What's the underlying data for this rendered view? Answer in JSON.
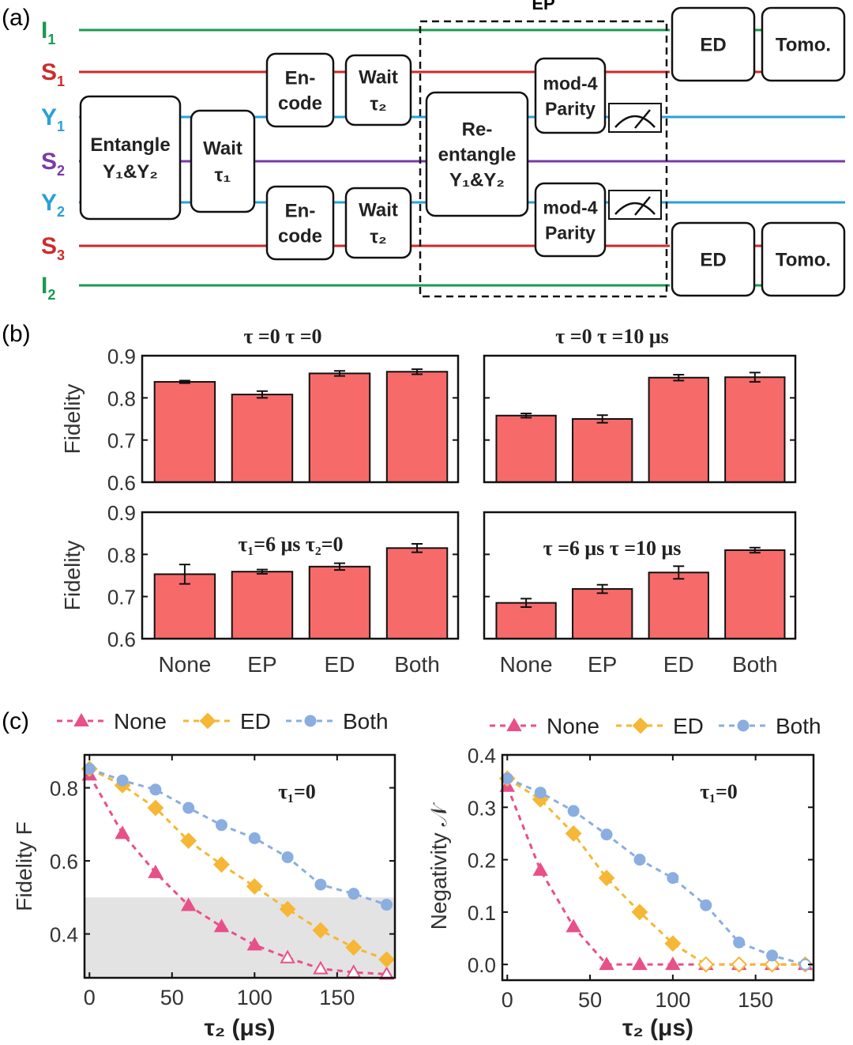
{
  "panel_labels": {
    "a": "(a)",
    "b": "(b)",
    "c": "(c)"
  },
  "circuit": {
    "lines": [
      {
        "name": "I",
        "sub": "1",
        "color": "#1a9b50"
      },
      {
        "name": "S",
        "sub": "1",
        "color": "#d02a2a"
      },
      {
        "name": "Y",
        "sub": "1",
        "color": "#2aa0d8"
      },
      {
        "name": "S",
        "sub": "2",
        "color": "#7a3aa8"
      },
      {
        "name": "Y",
        "sub": "2",
        "color": "#2aa0d8"
      },
      {
        "name": "S",
        "sub": "3",
        "color": "#d02a2a"
      },
      {
        "name": "I",
        "sub": "2",
        "color": "#1a9b50"
      }
    ],
    "ep_label": "EP",
    "boxes": {
      "entangle": [
        "Entangle",
        "Y₁&Y₂"
      ],
      "wait1": [
        "Wait",
        "τ₁"
      ],
      "encode_top": [
        "En-",
        "code"
      ],
      "encode_bot": [
        "En-",
        "code"
      ],
      "wait2_top": [
        "Wait",
        "τ₂"
      ],
      "wait2_bot": [
        "Wait",
        "τ₂"
      ],
      "reentangle": [
        "Re-",
        "entangle",
        "Y₁&Y₂"
      ],
      "parity_top": [
        "mod-4",
        "Parity"
      ],
      "parity_bot": [
        "mod-4",
        "Parity"
      ],
      "ed_top": "ED",
      "tomo_top": "Tomo.",
      "ed_bot": "ED",
      "tomo_bot": "Tomo."
    }
  },
  "colors": {
    "bar": "#f76a6a",
    "none": "#e8508a",
    "ed": "#f5b735",
    "both": "#8aaee0",
    "shade": "#e3e3e3"
  },
  "chart_data": [
    {
      "type": "bar",
      "annotation": "τ =0    τ =0",
      "categories": [
        "None",
        "EP",
        "ED",
        "Both"
      ],
      "values": [
        0.838,
        0.808,
        0.858,
        0.862
      ],
      "errors": [
        0.003,
        0.008,
        0.006,
        0.006
      ],
      "ylabel": "Fidelity",
      "ylim": [
        0.6,
        0.9
      ],
      "yticks": [
        "0.6",
        "0.7",
        "0.8",
        "0.9"
      ]
    },
    {
      "type": "bar",
      "annotation": "τ =0    τ =10 μs",
      "categories": [
        "None",
        "EP",
        "ED",
        "Both"
      ],
      "values": [
        0.758,
        0.75,
        0.848,
        0.849
      ],
      "errors": [
        0.005,
        0.009,
        0.007,
        0.011
      ],
      "ylabel": "",
      "ylim": [
        0.6,
        0.9
      ],
      "yticks": []
    },
    {
      "type": "bar",
      "annotation": "τ₁=6 μs   τ₂=0",
      "categories": [
        "None",
        "EP",
        "ED",
        "Both"
      ],
      "values": [
        0.753,
        0.759,
        0.771,
        0.815
      ],
      "errors": [
        0.023,
        0.005,
        0.008,
        0.01
      ],
      "ylabel": "Fidelity",
      "ylim": [
        0.6,
        0.9
      ],
      "yticks": [
        "0.6",
        "0.7",
        "0.8",
        "0.9"
      ],
      "xticklabels": [
        "None",
        "EP",
        "ED",
        "Both"
      ]
    },
    {
      "type": "bar",
      "annotation": "τ =6 μs   τ =10 μs",
      "categories": [
        "None",
        "EP",
        "ED",
        "Both"
      ],
      "values": [
        0.685,
        0.718,
        0.757,
        0.81
      ],
      "errors": [
        0.01,
        0.01,
        0.015,
        0.006
      ],
      "ylabel": "",
      "ylim": [
        0.6,
        0.9
      ],
      "yticks": [],
      "xticklabels": [
        "None",
        "EP",
        "ED",
        "Both"
      ]
    },
    {
      "type": "line",
      "annotation": "τ₁=0",
      "x": [
        0,
        20,
        40,
        60,
        80,
        100,
        120,
        140,
        160,
        180
      ],
      "series": [
        {
          "name": "None",
          "values": [
            0.835,
            0.675,
            0.568,
            0.478,
            0.42,
            0.37,
            0.335,
            0.305,
            0.295,
            0.29
          ],
          "open_from": 120
        },
        {
          "name": "ED",
          "values": [
            0.852,
            0.807,
            0.745,
            0.655,
            0.59,
            0.53,
            0.468,
            0.41,
            0.363,
            0.33
          ]
        },
        {
          "name": "Both",
          "values": [
            0.852,
            0.82,
            0.795,
            0.745,
            0.698,
            0.662,
            0.61,
            0.535,
            0.51,
            0.48
          ]
        }
      ],
      "xlabel": "τ₂ (μs)",
      "ylabel": "Fidelity F",
      "xlim": [
        -3,
        185
      ],
      "ylim": [
        0.28,
        0.89
      ],
      "xticks": [
        0,
        50,
        100,
        150
      ],
      "yticks": [
        0.4,
        0.6,
        0.8
      ],
      "shade_below": 0.5
    },
    {
      "type": "line",
      "annotation": "τ₁=0",
      "x": [
        0,
        20,
        40,
        60,
        80,
        100,
        120,
        140,
        160,
        180
      ],
      "series": [
        {
          "name": "None",
          "values": [
            0.34,
            0.18,
            0.072,
            0.0,
            0.0,
            0.0,
            0.0,
            0.0,
            0.0,
            0.0
          ],
          "open_from": 120
        },
        {
          "name": "ED",
          "values": [
            0.355,
            0.315,
            0.25,
            0.165,
            0.1,
            0.04,
            0.0,
            0.0,
            0.0,
            0.0
          ],
          "open_from": 120
        },
        {
          "name": "Both",
          "values": [
            0.355,
            0.328,
            0.293,
            0.248,
            0.2,
            0.165,
            0.113,
            0.042,
            0.017,
            0.0
          ],
          "open_from": 180
        }
      ],
      "xlabel": "τ₂ (μs)",
      "ylabel": "Negativity 𝒩",
      "xlim": [
        -3,
        185
      ],
      "ylim": [
        -0.03,
        0.4
      ],
      "xticks": [
        0,
        50,
        100,
        150
      ],
      "yticks": [
        0.0,
        0.1,
        0.2,
        0.3,
        0.4
      ]
    }
  ]
}
